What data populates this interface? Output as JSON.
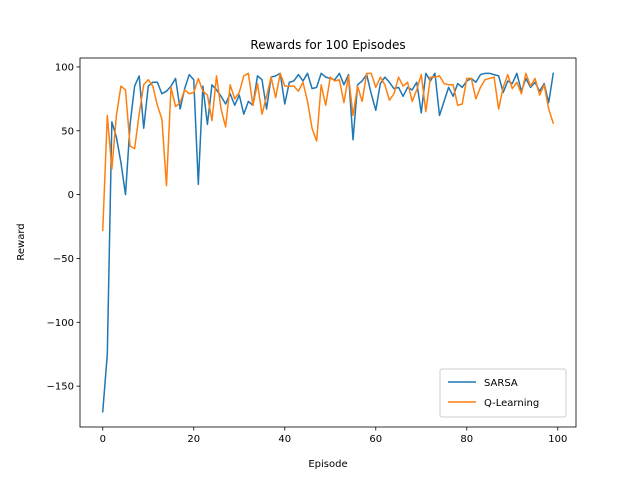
{
  "chart_data": {
    "type": "line",
    "title": "Rewards for 100 Episodes",
    "xlabel": "Episode",
    "ylabel": "Reward",
    "xlim": [
      -5,
      104
    ],
    "ylim": [
      -182,
      107
    ],
    "xticks": [
      0,
      20,
      40,
      60,
      80,
      100
    ],
    "yticks": [
      100,
      50,
      0,
      -50,
      -100,
      -150
    ],
    "legend_position": "lower-right",
    "grid": false,
    "x": [
      0,
      1,
      2,
      3,
      4,
      5,
      6,
      7,
      8,
      9,
      10,
      11,
      12,
      13,
      14,
      15,
      16,
      17,
      18,
      19,
      20,
      21,
      22,
      23,
      24,
      25,
      26,
      27,
      28,
      29,
      30,
      31,
      32,
      33,
      34,
      35,
      36,
      37,
      38,
      39,
      40,
      41,
      42,
      43,
      44,
      45,
      46,
      47,
      48,
      49,
      50,
      51,
      52,
      53,
      54,
      55,
      56,
      57,
      58,
      59,
      60,
      61,
      62,
      63,
      64,
      65,
      66,
      67,
      68,
      69,
      70,
      71,
      72,
      73,
      74,
      75,
      76,
      77,
      78,
      79,
      80,
      81,
      82,
      83,
      84,
      85,
      86,
      87,
      88,
      89,
      90,
      91,
      92,
      93,
      94,
      95,
      96,
      97,
      98,
      99
    ],
    "series": [
      {
        "name": "SARSA",
        "color": "#1f77b4",
        "values": [
          -170,
          -125,
          57,
          45,
          25,
          0,
          55,
          85,
          93,
          52,
          85,
          88,
          88,
          79,
          81,
          85,
          91,
          67,
          83,
          94,
          90,
          8,
          85,
          55,
          86,
          82,
          77,
          71,
          79,
          70,
          78,
          63,
          73,
          70,
          93,
          90,
          67,
          92,
          93,
          95,
          71,
          88,
          89,
          94,
          89,
          95,
          83,
          84,
          95,
          92,
          91,
          90,
          95,
          86,
          94,
          43,
          86,
          89,
          94,
          79,
          66,
          87,
          92,
          88,
          83,
          84,
          77,
          84,
          82,
          88,
          64,
          95,
          89,
          95,
          62,
          73,
          84,
          77,
          87,
          84,
          89,
          91,
          88,
          94,
          95,
          95,
          94,
          93,
          80,
          89,
          87,
          95,
          81,
          91,
          84,
          88,
          81,
          87,
          72,
          95
        ]
      },
      {
        "name": "Q-Learning",
        "color": "#ff7f0e",
        "values": [
          -28,
          62,
          20,
          62,
          85,
          82,
          38,
          36,
          63,
          86,
          90,
          85,
          70,
          59,
          7,
          84,
          69,
          72,
          82,
          79,
          80,
          91,
          81,
          78,
          58,
          93,
          67,
          53,
          86,
          75,
          80,
          93,
          95,
          70,
          87,
          63,
          77,
          92,
          76,
          95,
          85,
          85,
          85,
          81,
          88,
          73,
          52,
          42,
          86,
          70,
          92,
          89,
          90,
          72,
          93,
          62,
          85,
          73,
          95,
          95,
          84,
          92,
          86,
          74,
          79,
          92,
          85,
          88,
          73,
          82,
          94,
          65,
          92,
          92,
          93,
          87,
          86,
          86,
          70,
          71,
          91,
          91,
          75,
          84,
          90,
          91,
          92,
          67,
          84,
          94,
          83,
          88,
          79,
          95,
          85,
          91,
          78,
          86,
          67,
          56
        ]
      }
    ]
  }
}
